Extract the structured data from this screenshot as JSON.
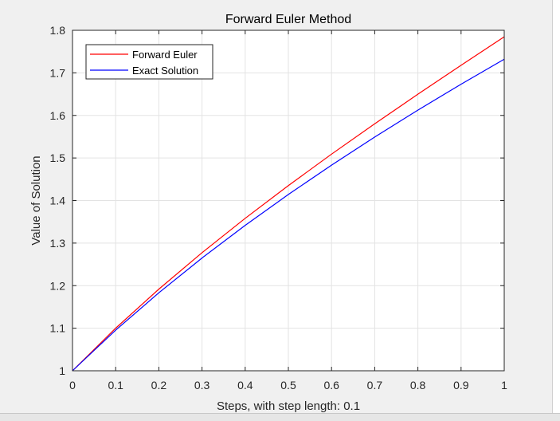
{
  "window": {
    "background": "#f0f0f0"
  },
  "chart_data": {
    "type": "line",
    "title": "Forward Euler Method",
    "xlabel": "Steps, with step length: 0.1",
    "ylabel": "Value of Solution",
    "xlim": [
      0,
      1
    ],
    "ylim": [
      1,
      1.8
    ],
    "xticks": [
      0,
      0.1,
      0.2,
      0.3,
      0.4,
      0.5,
      0.6,
      0.7,
      0.8,
      0.9,
      1
    ],
    "xtick_labels": [
      "0",
      "0.1",
      "0.2",
      "0.3",
      "0.4",
      "0.5",
      "0.6",
      "0.7",
      "0.8",
      "0.9",
      "1"
    ],
    "yticks": [
      1,
      1.1,
      1.2,
      1.3,
      1.4,
      1.5,
      1.6,
      1.7,
      1.8
    ],
    "ytick_labels": [
      "1",
      "1.1",
      "1.2",
      "1.3",
      "1.4",
      "1.5",
      "1.6",
      "1.7",
      "1.8"
    ],
    "grid": true,
    "legend_position": "top-left",
    "x": [
      0,
      0.1,
      0.2,
      0.3,
      0.4,
      0.5,
      0.6,
      0.7,
      0.8,
      0.9,
      1
    ],
    "series": [
      {
        "name": "Forward Euler",
        "color": "#ff0000",
        "values": [
          1,
          1.1,
          1.1918,
          1.2774,
          1.3582,
          1.4351,
          1.509,
          1.5803,
          1.6498,
          1.7178,
          1.7848
        ]
      },
      {
        "name": "Exact Solution",
        "color": "#0000ff",
        "values": [
          1,
          1.0954,
          1.1832,
          1.2649,
          1.3416,
          1.4142,
          1.4832,
          1.5492,
          1.6125,
          1.6733,
          1.7321
        ]
      }
    ]
  }
}
